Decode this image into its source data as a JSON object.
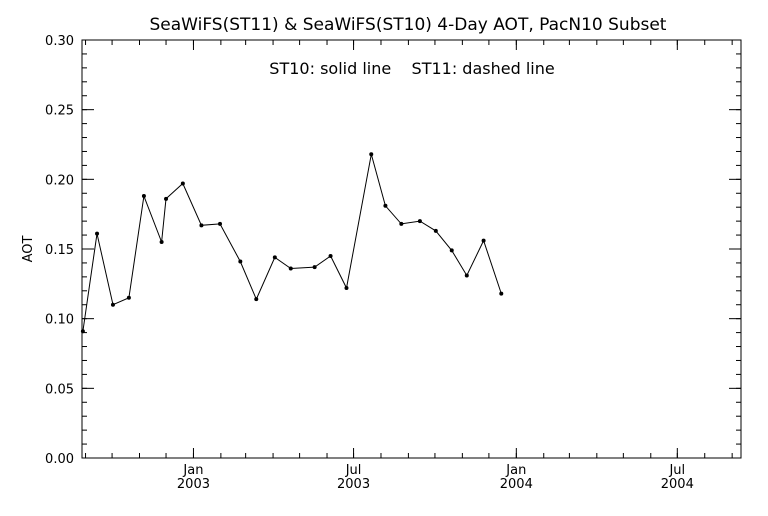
{
  "chart_data": {
    "type": "line",
    "title": "SeaWiFS(ST11) & SeaWiFS(ST10) 4-Day AOT, PacN10 Subset",
    "annotation": "ST10: solid line    ST11: dashed line",
    "xlabel": "",
    "ylabel": "AOT",
    "ylim": [
      0.0,
      0.3
    ],
    "y_ticks": [
      "0.00",
      "0.05",
      "0.10",
      "0.15",
      "0.20",
      "0.25",
      "0.30"
    ],
    "x_range": [
      "2002-08-28",
      "2004-09-11"
    ],
    "x_tick_labels": [
      {
        "date": "2003-01-01",
        "line1": "Jan",
        "line2": "2003"
      },
      {
        "date": "2003-07-01",
        "line1": "Jul",
        "line2": "2003"
      },
      {
        "date": "2004-01-01",
        "line1": "Jan",
        "line2": "2004"
      },
      {
        "date": "2004-07-01",
        "line1": "Jul",
        "line2": "2004"
      }
    ],
    "x_minor_ticks": [
      "2002-09-01",
      "2002-10-01",
      "2002-11-01",
      "2002-12-01",
      "2003-01-01",
      "2003-02-01",
      "2003-03-01",
      "2003-04-01",
      "2003-05-01",
      "2003-06-01",
      "2003-07-01",
      "2003-08-01",
      "2003-09-01",
      "2003-10-01",
      "2003-11-01",
      "2003-12-01",
      "2004-01-01",
      "2004-02-01",
      "2004-03-01",
      "2004-04-01",
      "2004-05-01",
      "2004-06-01",
      "2004-07-01",
      "2004-08-01",
      "2004-09-01"
    ],
    "series": [
      {
        "name": "ST10",
        "style": "solid",
        "color": "#000000",
        "points": [
          {
            "x": "2002-08-29",
            "y": 0.091
          },
          {
            "x": "2002-09-14",
            "y": 0.161
          },
          {
            "x": "2002-10-02",
            "y": 0.11
          },
          {
            "x": "2002-10-20",
            "y": 0.115
          },
          {
            "x": "2002-11-06",
            "y": 0.188
          },
          {
            "x": "2002-11-26",
            "y": 0.155
          },
          {
            "x": "2002-12-01",
            "y": 0.186
          },
          {
            "x": "2002-12-20",
            "y": 0.197
          },
          {
            "x": "2003-01-10",
            "y": 0.167
          },
          {
            "x": "2003-01-31",
            "y": 0.168
          },
          {
            "x": "2003-02-23",
            "y": 0.141
          },
          {
            "x": "2003-03-13",
            "y": 0.114
          },
          {
            "x": "2003-04-03",
            "y": 0.144
          },
          {
            "x": "2003-04-21",
            "y": 0.136
          },
          {
            "x": "2003-05-18",
            "y": 0.137
          },
          {
            "x": "2003-06-05",
            "y": 0.145
          },
          {
            "x": "2003-06-23",
            "y": 0.122
          },
          {
            "x": "2003-07-21",
            "y": 0.218
          },
          {
            "x": "2003-08-06",
            "y": 0.181
          },
          {
            "x": "2003-08-24",
            "y": 0.168
          },
          {
            "x": "2003-09-14",
            "y": 0.17
          },
          {
            "x": "2003-10-02",
            "y": 0.163
          },
          {
            "x": "2003-10-20",
            "y": 0.149
          },
          {
            "x": "2003-11-06",
            "y": 0.131
          },
          {
            "x": "2003-11-25",
            "y": 0.156
          },
          {
            "x": "2003-12-15",
            "y": 0.118
          }
        ]
      }
    ]
  }
}
